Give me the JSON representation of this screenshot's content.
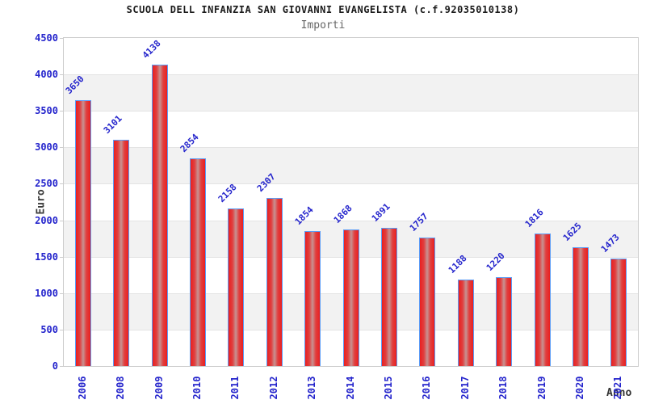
{
  "title": "SCUOLA DELL INFANZIA SAN GIOVANNI EVANGELISTA (c.f.92035010138)",
  "subtitle": "Importi",
  "chart_data": {
    "type": "bar",
    "title": "SCUOLA DELL INFANZIA SAN GIOVANNI EVANGELISTA (c.f.92035010138)",
    "subtitle": "Importi",
    "categories": [
      "2006",
      "2008",
      "2009",
      "2010",
      "2011",
      "2012",
      "2013",
      "2014",
      "2015",
      "2016",
      "2017",
      "2018",
      "2019",
      "2020",
      "2021"
    ],
    "values": [
      3650,
      3101,
      4138,
      2854,
      2158,
      2307,
      1854,
      1868,
      1891,
      1757,
      1188,
      1220,
      1816,
      1625,
      1473
    ],
    "xlabel": "Anno",
    "ylabel": "Euro",
    "ylim": [
      0,
      4500
    ],
    "yticks": [
      0,
      500,
      1000,
      1500,
      2000,
      2500,
      3000,
      3500,
      4000,
      4500
    ],
    "grid": "horizontal-bands",
    "legend": "none",
    "colors": {
      "bar_fill_edge": "#ea1f1f",
      "bar_fill_center": "#c79392",
      "bar_border": "#5b9cf6",
      "label_blue": "#2424cc",
      "band_gray": "#f2f2f2",
      "gridline": "#e3e3e3",
      "plot_border": "#cccccc",
      "title_color": "#1a1a1a",
      "subtitle_color": "#666666"
    }
  }
}
